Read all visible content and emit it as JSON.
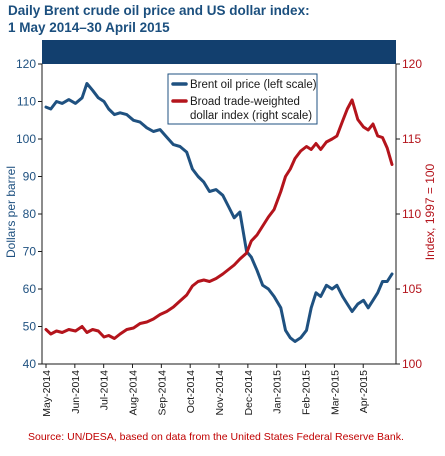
{
  "title": {
    "line1": "Daily Brent crude oil price and US dollar index:",
    "line2": "1 May 2014–30 April 2015"
  },
  "source": {
    "label": "Source:",
    "text": " UN/DESA, based on data from the United States Federal Reserve Bank."
  },
  "colors": {
    "oil": "#1f5180",
    "dollar": "#b4141c",
    "header_band": "#123f6e",
    "title": "#1b4f7e",
    "source": "#c00000"
  },
  "chart_data": {
    "type": "line",
    "x_labels": [
      "May-2014",
      "Jun-2014",
      "Jul-2014",
      "Aug-2014",
      "Sep-2014",
      "Oct-2014",
      "Nov-2014",
      "Dec-2014",
      "Jan-2015",
      "Feb-2015",
      "Mar-2015",
      "Apr-2015"
    ],
    "left_axis": {
      "label": "Dollars  per barrel",
      "ylim": [
        40,
        120
      ],
      "ticks": [
        "40",
        "50",
        "60",
        "70",
        "80",
        "90",
        "100",
        "110",
        "120"
      ]
    },
    "right_axis": {
      "label": "Index, 1997 = 100",
      "ylim": [
        100,
        120
      ],
      "ticks": [
        "100",
        "105",
        "110",
        "115",
        "120"
      ]
    },
    "legend_position": "top-center",
    "series": [
      {
        "name": "Brent oil price (left scale)",
        "axis": "left",
        "color": "#1f5180",
        "x": [
          "2014-05-01",
          "2014-05-06",
          "2014-05-12",
          "2014-05-18",
          "2014-05-25",
          "2014-06-01",
          "2014-06-08",
          "2014-06-13",
          "2014-06-19",
          "2014-06-25",
          "2014-07-01",
          "2014-07-06",
          "2014-07-12",
          "2014-07-18",
          "2014-07-25",
          "2014-08-01",
          "2014-08-08",
          "2014-08-15",
          "2014-08-22",
          "2014-08-29",
          "2014-09-05",
          "2014-09-12",
          "2014-09-19",
          "2014-09-26",
          "2014-10-02",
          "2014-10-08",
          "2014-10-14",
          "2014-10-20",
          "2014-10-27",
          "2014-11-03",
          "2014-11-09",
          "2014-11-15",
          "2014-11-21",
          "2014-11-28",
          "2014-12-03",
          "2014-12-09",
          "2014-12-15",
          "2014-12-21",
          "2014-12-27",
          "2015-01-03",
          "2015-01-08",
          "2015-01-13",
          "2015-01-18",
          "2015-01-24",
          "2015-01-30",
          "2015-02-04",
          "2015-02-09",
          "2015-02-14",
          "2015-02-20",
          "2015-02-26",
          "2015-03-03",
          "2015-03-09",
          "2015-03-14",
          "2015-03-19",
          "2015-03-25",
          "2015-03-31",
          "2015-04-05",
          "2015-04-10",
          "2015-04-15",
          "2015-04-20",
          "2015-04-25",
          "2015-04-30"
        ],
        "y": [
          108.5,
          108,
          110,
          109.5,
          110.5,
          109.5,
          111,
          114.8,
          113,
          111,
          110,
          108,
          106.5,
          107,
          106.5,
          105,
          104.5,
          103,
          102,
          102.5,
          100.5,
          98.5,
          98,
          96.5,
          92,
          90,
          88.5,
          86,
          86.5,
          85,
          82,
          79,
          80.5,
          70,
          68.5,
          65,
          61,
          60,
          58,
          55,
          49,
          47,
          46,
          47,
          49,
          55,
          59,
          58,
          61,
          60,
          61,
          58,
          56,
          54,
          56,
          57,
          55,
          57,
          59,
          62,
          62,
          64
        ]
      },
      {
        "name": "Broad trade-weighted dollar index (right scale)",
        "axis": "right",
        "color": "#b4141c",
        "x": [
          "2014-05-01",
          "2014-05-06",
          "2014-05-12",
          "2014-05-18",
          "2014-05-25",
          "2014-06-01",
          "2014-06-08",
          "2014-06-13",
          "2014-06-19",
          "2014-06-25",
          "2014-07-01",
          "2014-07-06",
          "2014-07-12",
          "2014-07-18",
          "2014-07-25",
          "2014-08-01",
          "2014-08-08",
          "2014-08-15",
          "2014-08-22",
          "2014-08-29",
          "2014-09-05",
          "2014-09-12",
          "2014-09-19",
          "2014-09-26",
          "2014-10-02",
          "2014-10-08",
          "2014-10-14",
          "2014-10-20",
          "2014-10-27",
          "2014-11-03",
          "2014-11-09",
          "2014-11-15",
          "2014-11-21",
          "2014-11-28",
          "2014-12-03",
          "2014-12-09",
          "2014-12-15",
          "2014-12-21",
          "2014-12-27",
          "2015-01-03",
          "2015-01-08",
          "2015-01-13",
          "2015-01-18",
          "2015-01-24",
          "2015-01-30",
          "2015-02-04",
          "2015-02-09",
          "2015-02-14",
          "2015-02-20",
          "2015-02-26",
          "2015-03-03",
          "2015-03-09",
          "2015-03-14",
          "2015-03-19",
          "2015-03-25",
          "2015-03-31",
          "2015-04-05",
          "2015-04-10",
          "2015-04-15",
          "2015-04-20",
          "2015-04-25",
          "2015-04-30"
        ],
        "y": [
          102.3,
          102,
          102.2,
          102.1,
          102.3,
          102.2,
          102.5,
          102.1,
          102.3,
          102.2,
          101.8,
          101.9,
          101.7,
          102,
          102.3,
          102.4,
          102.7,
          102.8,
          103,
          103.3,
          103.5,
          103.8,
          104.2,
          104.6,
          105.2,
          105.5,
          105.6,
          105.5,
          105.7,
          106,
          106.3,
          106.6,
          107,
          107.4,
          108.2,
          108.6,
          109.2,
          109.8,
          110.3,
          111.5,
          112.5,
          113,
          113.7,
          114.2,
          114.5,
          114.3,
          114.7,
          114.3,
          114.8,
          115,
          115.2,
          116.2,
          117,
          117.6,
          116.3,
          115.8,
          115.6,
          116,
          115.2,
          115.1,
          114.4,
          113.3
        ]
      }
    ]
  }
}
